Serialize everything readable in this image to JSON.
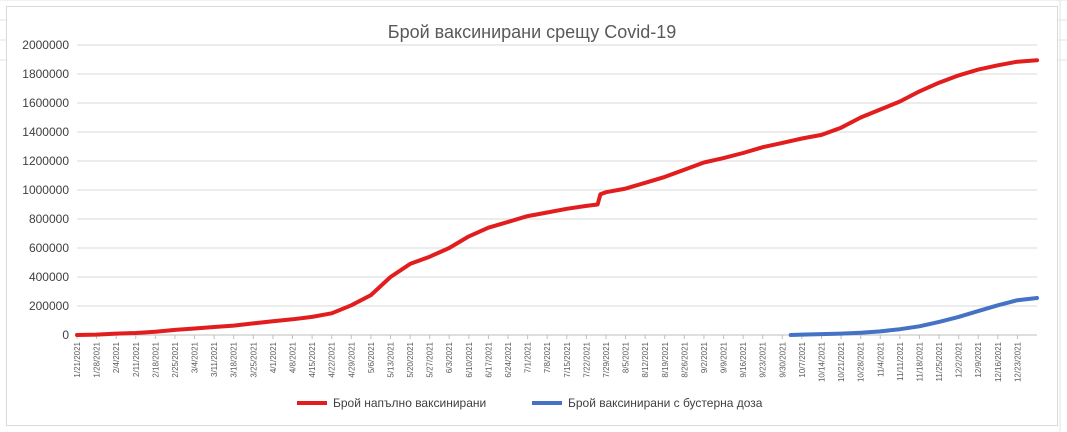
{
  "chart_data": {
    "type": "line",
    "title": "Брой ваксинирани срещу Covid-19",
    "xlabel": "",
    "ylabel": "",
    "ylim": [
      0,
      2000000
    ],
    "yticks": [
      0,
      200000,
      400000,
      600000,
      800000,
      1000000,
      1200000,
      1400000,
      1600000,
      1800000,
      2000000
    ],
    "yticks_labels": [
      "0",
      "200000",
      "400000",
      "600000",
      "800000",
      "1000000",
      "1200000",
      "1400000",
      "1600000",
      "1800000",
      "2000000"
    ],
    "x_range": [
      "2021-01-21",
      "2021-12-30"
    ],
    "x_tick_labels": [
      "1/21/2021",
      "1/28/2021",
      "2/4/2021",
      "2/11/2021",
      "2/18/2021",
      "2/25/2021",
      "3/4/2021",
      "3/11/2021",
      "3/18/2021",
      "3/25/2021",
      "4/1/2021",
      "4/8/2021",
      "4/15/2021",
      "4/22/2021",
      "4/29/2021",
      "5/6/2021",
      "5/13/2021",
      "5/20/2021",
      "5/27/2021",
      "6/3/2021",
      "6/10/2021",
      "6/17/2021",
      "6/24/2021",
      "7/1/2021",
      "7/8/2021",
      "7/15/2021",
      "7/22/2021",
      "7/29/2021",
      "8/5/2021",
      "8/12/2021",
      "8/19/2021",
      "8/26/2021",
      "9/2/2021",
      "9/9/2021",
      "9/16/2021",
      "9/23/2021",
      "9/30/2021",
      "10/7/2021",
      "10/14/2021",
      "10/21/2021",
      "10/28/2021",
      "11/4/2021",
      "11/11/2021",
      "11/18/2021",
      "11/25/2021",
      "12/2/2021",
      "12/9/2021",
      "12/16/2021",
      "12/23/2021"
    ],
    "grid": true,
    "legend_position": "bottom",
    "series": [
      {
        "name": "Брой напълно ваксинирани",
        "color": "#e11d1d",
        "points": [
          [
            "2021-01-21",
            0
          ],
          [
            "2021-01-28",
            3000
          ],
          [
            "2021-02-04",
            10000
          ],
          [
            "2021-02-11",
            14000
          ],
          [
            "2021-02-18",
            22000
          ],
          [
            "2021-02-25",
            35000
          ],
          [
            "2021-03-04",
            45000
          ],
          [
            "2021-03-11",
            55000
          ],
          [
            "2021-03-18",
            65000
          ],
          [
            "2021-03-25",
            80000
          ],
          [
            "2021-04-01",
            95000
          ],
          [
            "2021-04-08",
            108000
          ],
          [
            "2021-04-15",
            125000
          ],
          [
            "2021-04-22",
            150000
          ],
          [
            "2021-04-29",
            205000
          ],
          [
            "2021-05-06",
            275000
          ],
          [
            "2021-05-13",
            400000
          ],
          [
            "2021-05-20",
            490000
          ],
          [
            "2021-05-27",
            540000
          ],
          [
            "2021-06-03",
            600000
          ],
          [
            "2021-06-10",
            680000
          ],
          [
            "2021-06-17",
            740000
          ],
          [
            "2021-06-24",
            780000
          ],
          [
            "2021-07-01",
            820000
          ],
          [
            "2021-07-08",
            845000
          ],
          [
            "2021-07-15",
            870000
          ],
          [
            "2021-07-22",
            890000
          ],
          [
            "2021-07-26",
            900000
          ],
          [
            "2021-07-27",
            970000
          ],
          [
            "2021-07-29",
            985000
          ],
          [
            "2021-08-05",
            1010000
          ],
          [
            "2021-08-12",
            1050000
          ],
          [
            "2021-08-19",
            1090000
          ],
          [
            "2021-08-26",
            1140000
          ],
          [
            "2021-09-02",
            1190000
          ],
          [
            "2021-09-09",
            1220000
          ],
          [
            "2021-09-16",
            1255000
          ],
          [
            "2021-09-23",
            1295000
          ],
          [
            "2021-09-30",
            1325000
          ],
          [
            "2021-10-07",
            1355000
          ],
          [
            "2021-10-14",
            1380000
          ],
          [
            "2021-10-21",
            1430000
          ],
          [
            "2021-10-28",
            1500000
          ],
          [
            "2021-11-04",
            1555000
          ],
          [
            "2021-11-11",
            1610000
          ],
          [
            "2021-11-18",
            1680000
          ],
          [
            "2021-11-25",
            1740000
          ],
          [
            "2021-12-02",
            1790000
          ],
          [
            "2021-12-09",
            1830000
          ],
          [
            "2021-12-16",
            1860000
          ],
          [
            "2021-12-23",
            1885000
          ],
          [
            "2021-12-30",
            1895000
          ]
        ]
      },
      {
        "name": "Брой ваксинирани с бустерна доза",
        "color": "#4472c4",
        "points": [
          [
            "2021-10-03",
            0
          ],
          [
            "2021-10-07",
            3000
          ],
          [
            "2021-10-14",
            6000
          ],
          [
            "2021-10-21",
            10000
          ],
          [
            "2021-10-28",
            15000
          ],
          [
            "2021-11-04",
            25000
          ],
          [
            "2021-11-11",
            40000
          ],
          [
            "2021-11-18",
            60000
          ],
          [
            "2021-11-25",
            90000
          ],
          [
            "2021-12-02",
            125000
          ],
          [
            "2021-12-09",
            165000
          ],
          [
            "2021-12-16",
            205000
          ],
          [
            "2021-12-23",
            240000
          ],
          [
            "2021-12-30",
            255000
          ]
        ]
      }
    ]
  }
}
